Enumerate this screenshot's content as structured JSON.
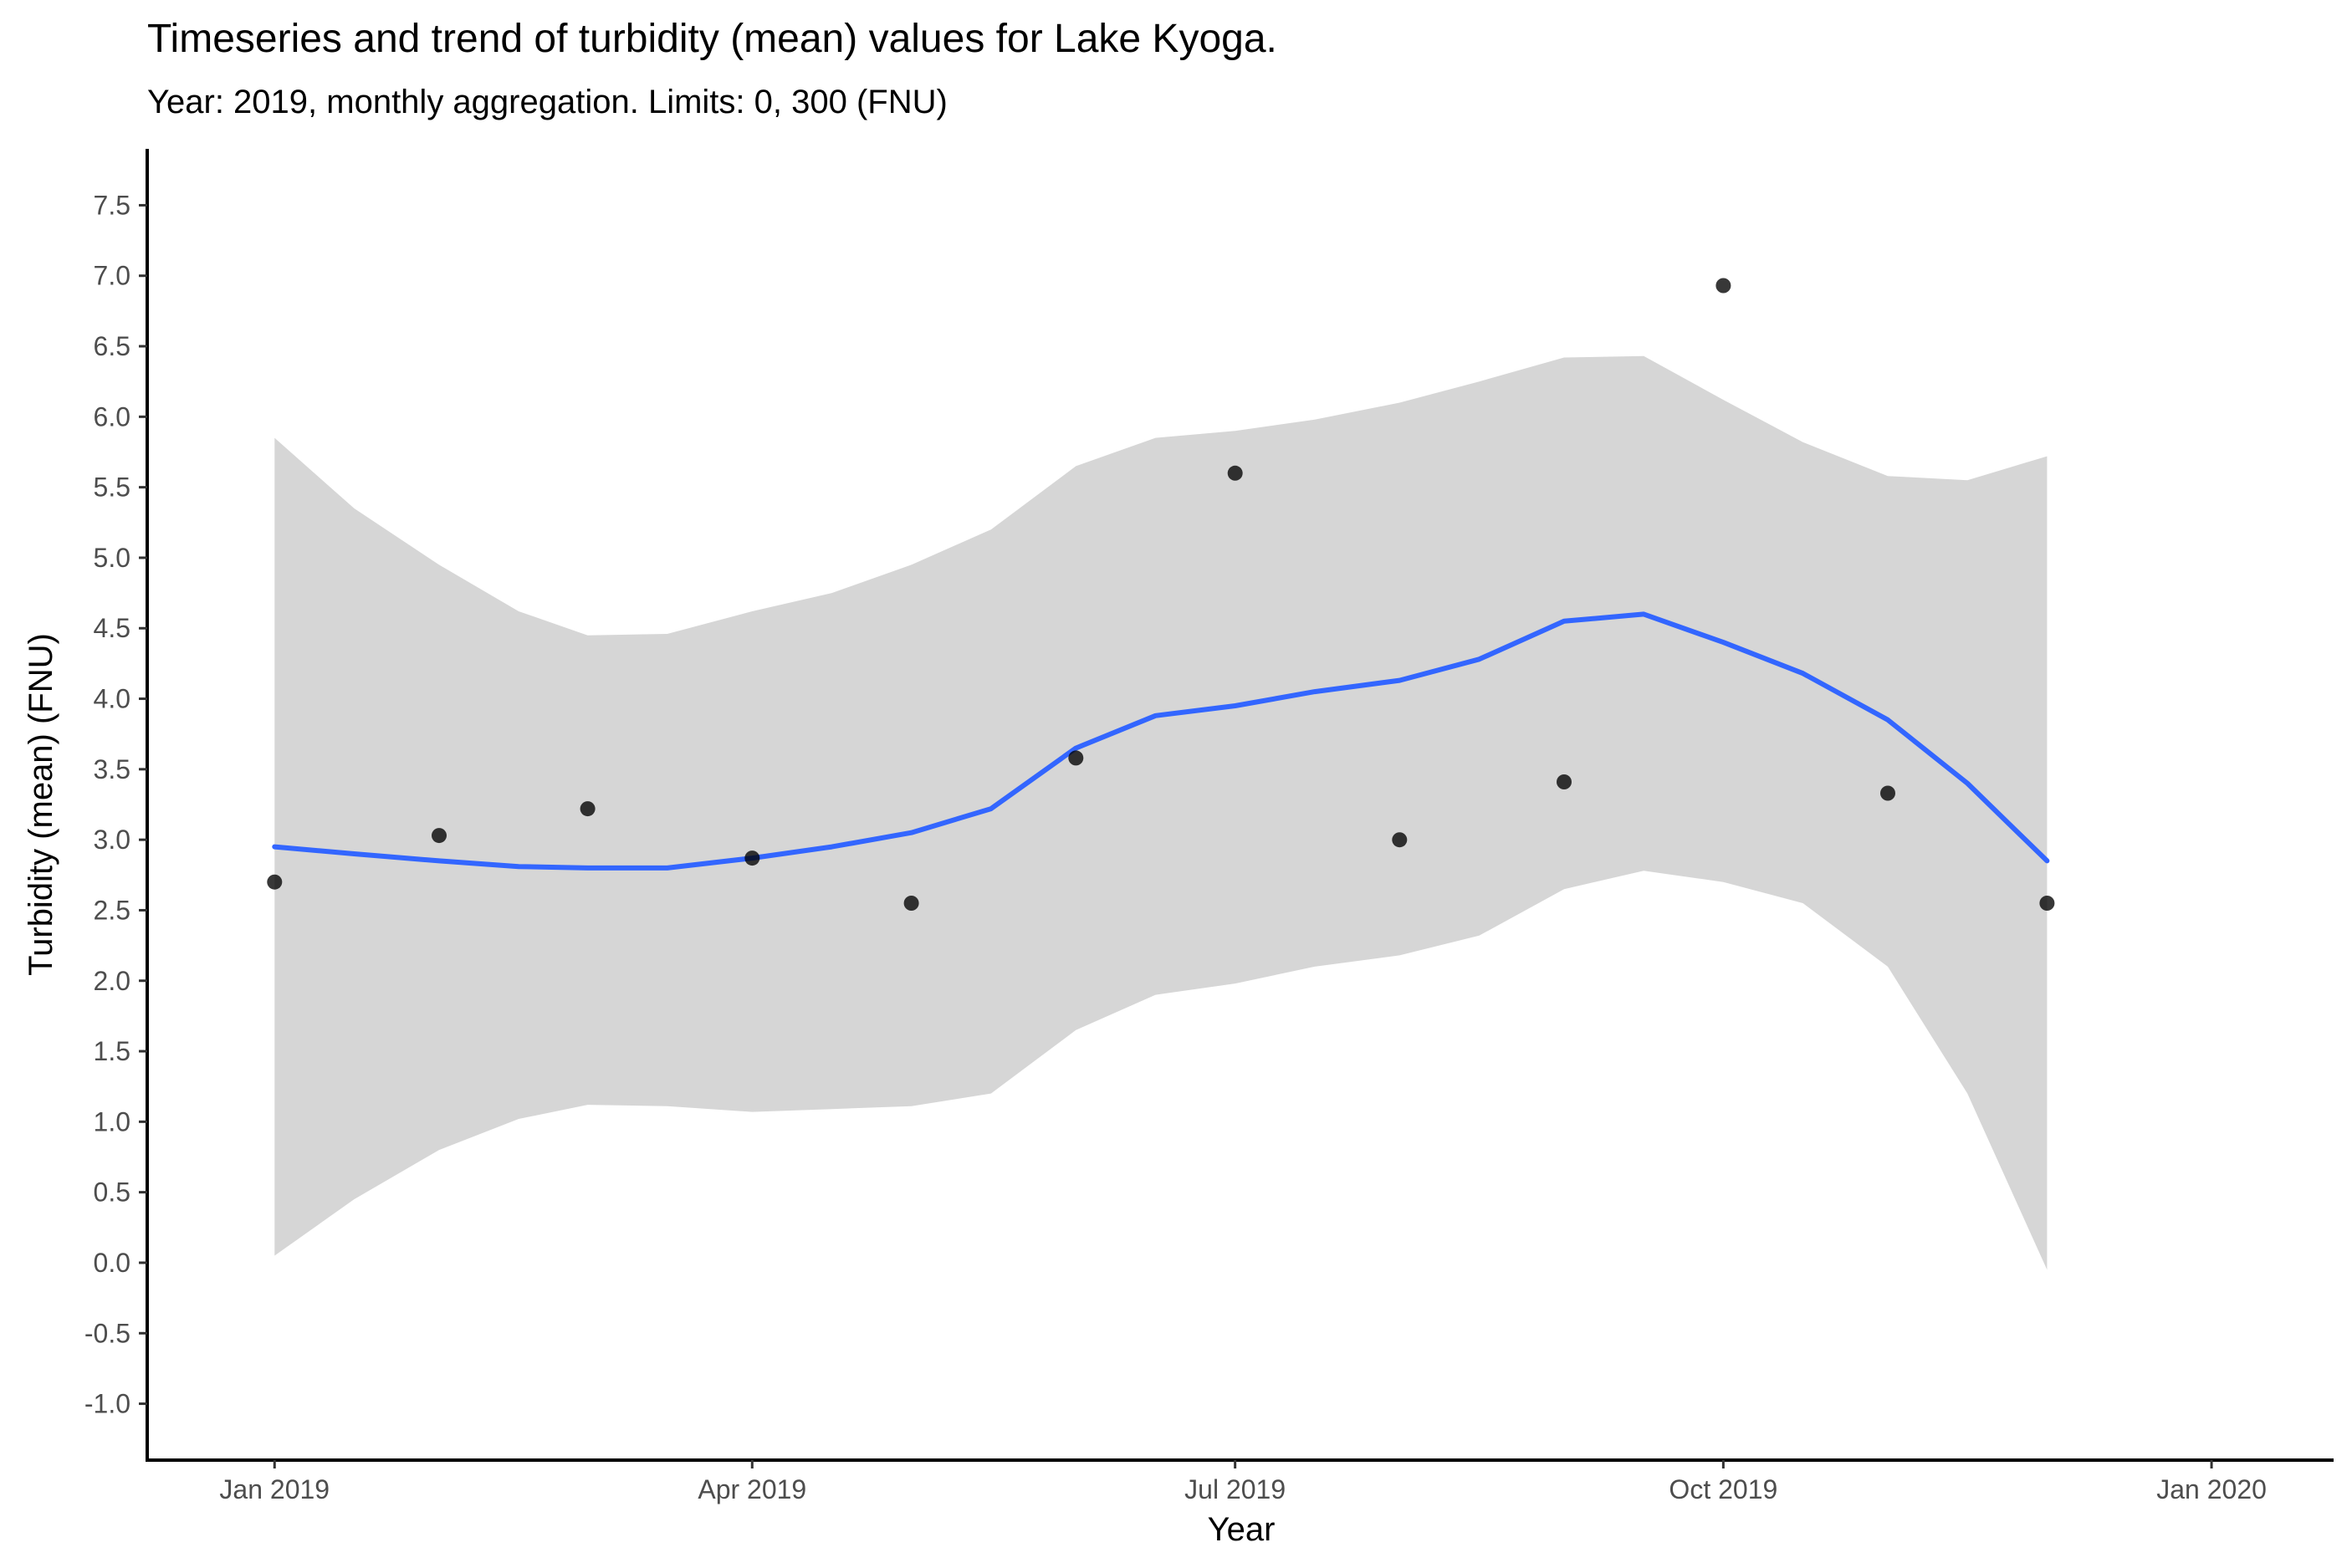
{
  "chart_data": {
    "type": "scatter",
    "title": "Timeseries and trend of turbidity (mean) values for Lake Kyoga.",
    "subtitle": "Year: 2019, monthly aggregation. Limits: 0, 300 (FNU)",
    "xlabel": "Year",
    "ylabel": "Turbidity (mean) (FNU)",
    "xlim": [
      "2018-12-08",
      "2020-01-24"
    ],
    "ylim": [
      -1.4,
      7.9
    ],
    "x_ticks": [
      {
        "date": "2019-01-01",
        "label": "Jan 2019"
      },
      {
        "date": "2019-04-01",
        "label": "Apr 2019"
      },
      {
        "date": "2019-07-01",
        "label": "Jul 2019"
      },
      {
        "date": "2019-10-01",
        "label": "Oct 2019"
      },
      {
        "date": "2020-01-01",
        "label": "Jan 2020"
      }
    ],
    "y_ticks": [
      -1.0,
      -0.5,
      0.0,
      0.5,
      1.0,
      1.5,
      2.0,
      2.5,
      3.0,
      3.5,
      4.0,
      4.5,
      5.0,
      5.5,
      6.0,
      6.5,
      7.0,
      7.5
    ],
    "grid": false,
    "legend": "none",
    "colors": {
      "trend": "#3366FF",
      "band": "#D6D6D6",
      "points": "#000000"
    },
    "points": [
      {
        "x": "2019-01-01",
        "y": 2.7
      },
      {
        "x": "2019-02-01",
        "y": 3.03
      },
      {
        "x": "2019-03-01",
        "y": 3.22
      },
      {
        "x": "2019-04-01",
        "y": 2.87
      },
      {
        "x": "2019-05-01",
        "y": 2.55
      },
      {
        "x": "2019-06-01",
        "y": 3.58
      },
      {
        "x": "2019-07-01",
        "y": 5.6
      },
      {
        "x": "2019-08-01",
        "y": 3.0
      },
      {
        "x": "2019-09-01",
        "y": 3.41
      },
      {
        "x": "2019-10-01",
        "y": 6.93
      },
      {
        "x": "2019-11-01",
        "y": 3.33
      },
      {
        "x": "2019-12-01",
        "y": 2.55
      }
    ],
    "trend": [
      {
        "x": "2019-01-01",
        "y": 2.95,
        "lower": 0.05,
        "upper": 5.85
      },
      {
        "x": "2019-01-16",
        "y": 2.9,
        "lower": 0.45,
        "upper": 5.35
      },
      {
        "x": "2019-02-01",
        "y": 2.85,
        "lower": 0.8,
        "upper": 4.95
      },
      {
        "x": "2019-02-16",
        "y": 2.81,
        "lower": 1.02,
        "upper": 4.62
      },
      {
        "x": "2019-03-01",
        "y": 2.8,
        "lower": 1.12,
        "upper": 4.45
      },
      {
        "x": "2019-03-16",
        "y": 2.8,
        "lower": 1.11,
        "upper": 4.46
      },
      {
        "x": "2019-04-01",
        "y": 2.87,
        "lower": 1.07,
        "upper": 4.62
      },
      {
        "x": "2019-04-16",
        "y": 2.95,
        "lower": 1.09,
        "upper": 4.75
      },
      {
        "x": "2019-05-01",
        "y": 3.05,
        "lower": 1.11,
        "upper": 4.95
      },
      {
        "x": "2019-05-16",
        "y": 3.22,
        "lower": 1.2,
        "upper": 5.2
      },
      {
        "x": "2019-06-01",
        "y": 3.65,
        "lower": 1.65,
        "upper": 5.65
      },
      {
        "x": "2019-06-16",
        "y": 3.88,
        "lower": 1.9,
        "upper": 5.85
      },
      {
        "x": "2019-07-01",
        "y": 3.95,
        "lower": 1.98,
        "upper": 5.9
      },
      {
        "x": "2019-07-16",
        "y": 4.05,
        "lower": 2.1,
        "upper": 5.98
      },
      {
        "x": "2019-08-01",
        "y": 4.13,
        "lower": 2.18,
        "upper": 6.1
      },
      {
        "x": "2019-08-16",
        "y": 4.28,
        "lower": 2.32,
        "upper": 6.25
      },
      {
        "x": "2019-09-01",
        "y": 4.55,
        "lower": 2.65,
        "upper": 6.42
      },
      {
        "x": "2019-09-16",
        "y": 4.6,
        "lower": 2.78,
        "upper": 6.43
      },
      {
        "x": "2019-10-01",
        "y": 4.4,
        "lower": 2.7,
        "upper": 6.12
      },
      {
        "x": "2019-10-16",
        "y": 4.18,
        "lower": 2.55,
        "upper": 5.82
      },
      {
        "x": "2019-11-01",
        "y": 3.85,
        "lower": 2.1,
        "upper": 5.58
      },
      {
        "x": "2019-11-16",
        "y": 3.4,
        "lower": 1.2,
        "upper": 5.55
      },
      {
        "x": "2019-12-01",
        "y": 2.85,
        "lower": -0.05,
        "upper": 5.72
      }
    ]
  }
}
